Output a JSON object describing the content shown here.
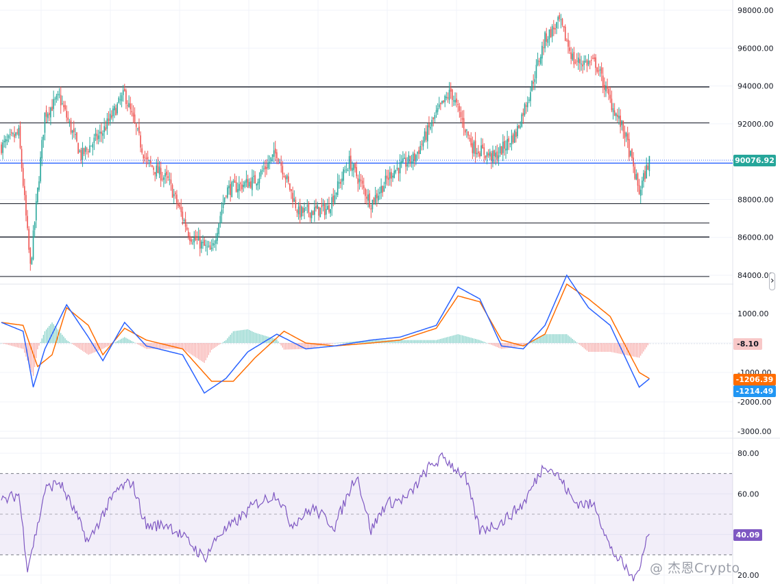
{
  "price_panel": {
    "current_price_label": "90076.92",
    "y_ticks": [
      "98000.00",
      "96000.00",
      "94000.00",
      "92000.00",
      "88000.00",
      "86000.00",
      "84000.00"
    ],
    "y_range": [
      83600,
      98600
    ],
    "horizontal_levels": [
      93950,
      92050,
      89920,
      87780,
      86760,
      86020,
      83930
    ],
    "current_price": 90076.92,
    "up_color": "#26a69a",
    "down_color": "#ef5350"
  },
  "macd_panel": {
    "y_ticks": [
      "1000.00",
      "-1000.00",
      "-2000.00",
      "-3000.00"
    ],
    "histogram_label": "-8.10",
    "signal_label": "-1206.39",
    "macd_label": "-1214.49",
    "y_range": [
      -3400,
      1800
    ],
    "macd_color": "#2962ff",
    "signal_color": "#ff6d00"
  },
  "rsi_panel": {
    "y_ticks": [
      "80.00",
      "60.00",
      "20.00"
    ],
    "rsi_label": "40.09",
    "band": [
      30,
      70
    ],
    "mid": 50,
    "y_range": [
      17,
      82
    ],
    "line_color": "#7e57c2"
  },
  "watermark": "@ 杰恩Crypto",
  "chart_data": [
    {
      "type": "candlestick",
      "title": "",
      "ylim": [
        83600,
        98600
      ],
      "key_points": [
        {
          "x": 0,
          "close": 90800
        },
        {
          "x": 12,
          "close": 91500
        },
        {
          "x": 20,
          "close": 84400
        },
        {
          "x": 30,
          "close": 92500
        },
        {
          "x": 40,
          "close": 93400
        },
        {
          "x": 55,
          "close": 90300
        },
        {
          "x": 70,
          "close": 91600
        },
        {
          "x": 85,
          "close": 93600
        },
        {
          "x": 100,
          "close": 90000
        },
        {
          "x": 115,
          "close": 89000
        },
        {
          "x": 130,
          "close": 86100
        },
        {
          "x": 145,
          "close": 85200
        },
        {
          "x": 155,
          "close": 88500
        },
        {
          "x": 175,
          "close": 89000
        },
        {
          "x": 190,
          "close": 90500
        },
        {
          "x": 205,
          "close": 87300
        },
        {
          "x": 225,
          "close": 87500
        },
        {
          "x": 240,
          "close": 90000
        },
        {
          "x": 255,
          "close": 87800
        },
        {
          "x": 270,
          "close": 89500
        },
        {
          "x": 285,
          "close": 90200
        },
        {
          "x": 300,
          "close": 92500
        },
        {
          "x": 310,
          "close": 93700
        },
        {
          "x": 325,
          "close": 90800
        },
        {
          "x": 340,
          "close": 90200
        },
        {
          "x": 355,
          "close": 91500
        },
        {
          "x": 365,
          "close": 93800
        },
        {
          "x": 375,
          "close": 96500
        },
        {
          "x": 385,
          "close": 97400
        },
        {
          "x": 395,
          "close": 95300
        },
        {
          "x": 410,
          "close": 95200
        },
        {
          "x": 420,
          "close": 93200
        },
        {
          "x": 430,
          "close": 91500
        },
        {
          "x": 440,
          "close": 88400
        },
        {
          "x": 447,
          "close": 90077
        }
      ]
    },
    {
      "type": "line",
      "title": "",
      "series": [
        {
          "values_key_points": [
            [
              0,
              700
            ],
            [
              15,
              400
            ],
            [
              22,
              -1500
            ],
            [
              30,
              -200
            ],
            [
              45,
              1300
            ],
            [
              60,
              200
            ],
            [
              70,
              -600
            ],
            [
              85,
              700
            ],
            [
              100,
              -100
            ],
            [
              125,
              -400
            ],
            [
              140,
              -1700
            ],
            [
              155,
              -1200
            ],
            [
              170,
              -300
            ],
            [
              190,
              300
            ],
            [
              210,
              -200
            ],
            [
              230,
              -100
            ],
            [
              255,
              100
            ],
            [
              275,
              200
            ],
            [
              300,
              600
            ],
            [
              315,
              1900
            ],
            [
              330,
              1500
            ],
            [
              345,
              -100
            ],
            [
              360,
              -200
            ],
            [
              375,
              600
            ],
            [
              390,
              2300
            ],
            [
              405,
              1200
            ],
            [
              420,
              600
            ],
            [
              440,
              -1500
            ],
            [
              447,
              -1214
            ]
          ]
        },
        {
          "values_key_points": [
            [
              0,
              700
            ],
            [
              15,
              600
            ],
            [
              25,
              -800
            ],
            [
              35,
              -400
            ],
            [
              45,
              1200
            ],
            [
              60,
              600
            ],
            [
              70,
              -400
            ],
            [
              85,
              500
            ],
            [
              100,
              100
            ],
            [
              125,
              -200
            ],
            [
              145,
              -1300
            ],
            [
              160,
              -1300
            ],
            [
              175,
              -500
            ],
            [
              195,
              400
            ],
            [
              210,
              0
            ],
            [
              230,
              -100
            ],
            [
              255,
              0
            ],
            [
              275,
              100
            ],
            [
              300,
              500
            ],
            [
              315,
              1600
            ],
            [
              330,
              1400
            ],
            [
              345,
              100
            ],
            [
              360,
              -100
            ],
            [
              375,
              300
            ],
            [
              390,
              2000
            ],
            [
              405,
              1500
            ],
            [
              420,
              900
            ],
            [
              440,
              -1000
            ],
            [
              447,
              -1206
            ]
          ]
        }
      ],
      "ylim": [
        -3400,
        1800
      ]
    },
    {
      "type": "line",
      "title": "",
      "series": [
        {
          "values_key_points": [
            [
              0,
              56
            ],
            [
              12,
              60
            ],
            [
              18,
              24
            ],
            [
              25,
              44
            ],
            [
              30,
              62
            ],
            [
              40,
              66
            ],
            [
              50,
              52
            ],
            [
              60,
              36
            ],
            [
              70,
              50
            ],
            [
              80,
              62
            ],
            [
              90,
              66
            ],
            [
              100,
              44
            ],
            [
              115,
              45
            ],
            [
              130,
              36
            ],
            [
              140,
              28
            ],
            [
              150,
              40
            ],
            [
              160,
              45
            ],
            [
              175,
              55
            ],
            [
              190,
              60
            ],
            [
              200,
              45
            ],
            [
              215,
              53
            ],
            [
              230,
              44
            ],
            [
              245,
              70
            ],
            [
              255,
              42
            ],
            [
              265,
              55
            ],
            [
              280,
              58
            ],
            [
              295,
              73
            ],
            [
              305,
              78
            ],
            [
              320,
              68
            ],
            [
              330,
              42
            ],
            [
              345,
              46
            ],
            [
              360,
              55
            ],
            [
              375,
              75
            ],
            [
              385,
              68
            ],
            [
              395,
              56
            ],
            [
              410,
              54
            ],
            [
              420,
              33
            ],
            [
              430,
              24
            ],
            [
              437,
              17
            ],
            [
              445,
              38
            ],
            [
              447,
              40
            ]
          ]
        }
      ],
      "ylim": [
        17,
        82
      ]
    }
  ]
}
